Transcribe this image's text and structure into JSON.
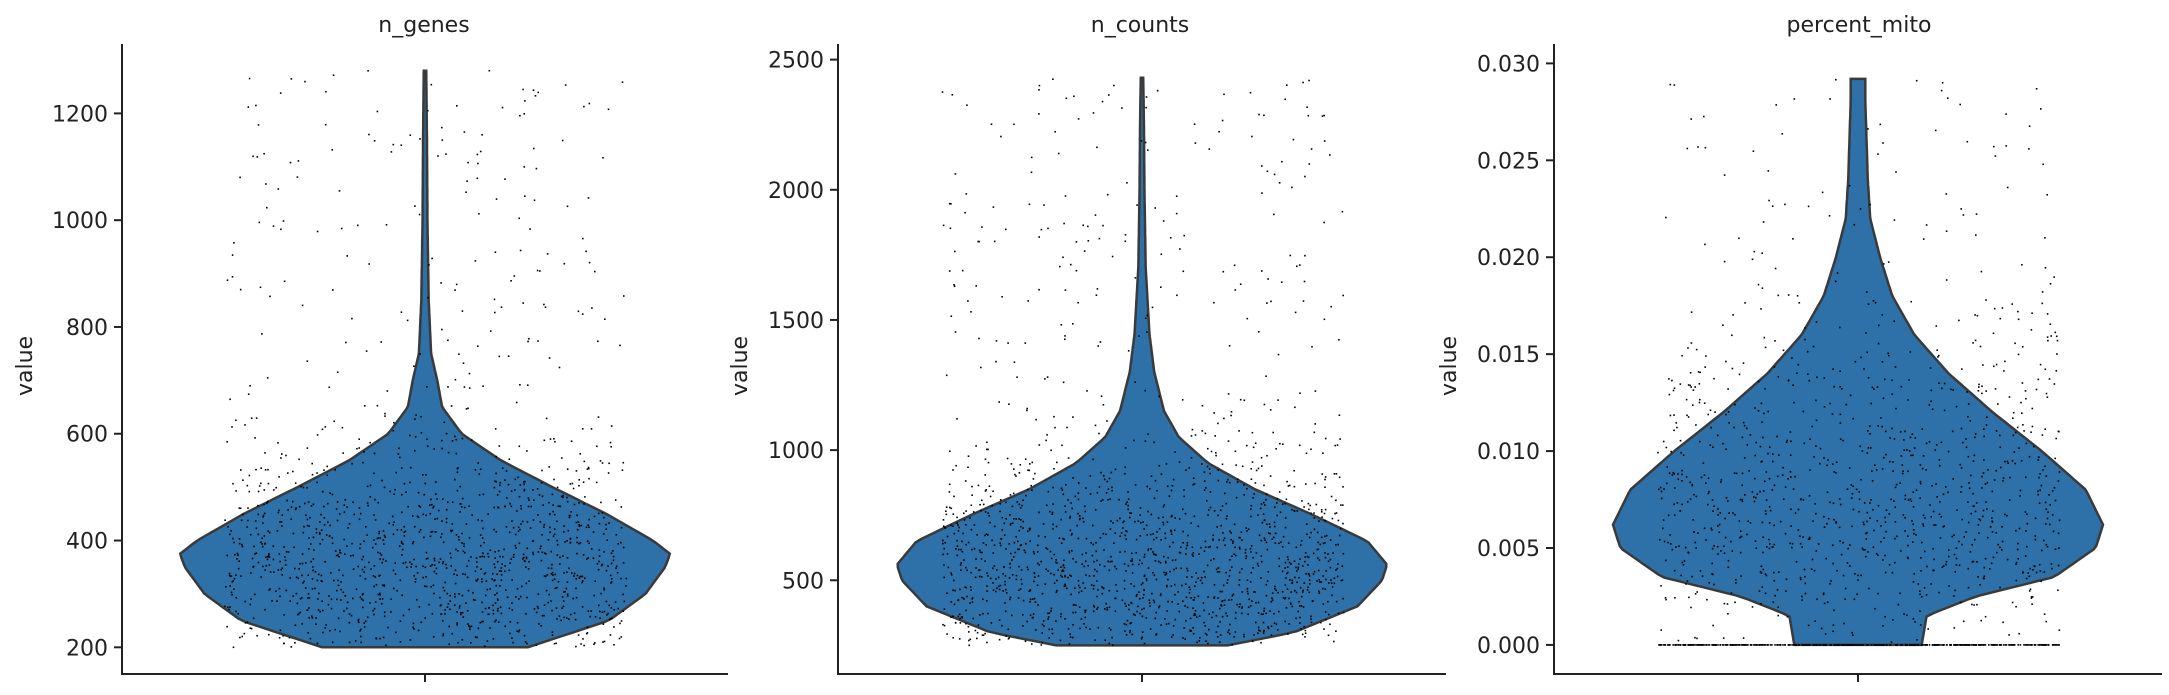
{
  "chart_data": [
    {
      "type": "violin",
      "title": "n_genes",
      "ylabel": "value",
      "ylim": [
        150,
        1330
      ],
      "yticks": [
        200,
        400,
        600,
        800,
        1000,
        1200
      ],
      "ytick_labels": [
        "200",
        "400",
        "600",
        "800",
        "1000",
        "1200"
      ],
      "violin_color": "#2e70a8",
      "n_points": 1400,
      "density": [
        {
          "y": 200,
          "width": 0.42
        },
        {
          "y": 250,
          "width": 0.75
        },
        {
          "y": 300,
          "width": 0.9
        },
        {
          "y": 350,
          "width": 0.98
        },
        {
          "y": 375,
          "width": 1.0
        },
        {
          "y": 400,
          "width": 0.93
        },
        {
          "y": 450,
          "width": 0.74
        },
        {
          "y": 500,
          "width": 0.52
        },
        {
          "y": 550,
          "width": 0.31
        },
        {
          "y": 600,
          "width": 0.15
        },
        {
          "y": 650,
          "width": 0.07
        },
        {
          "y": 700,
          "width": 0.05
        },
        {
          "y": 750,
          "width": 0.025
        },
        {
          "y": 850,
          "width": 0.015
        },
        {
          "y": 1000,
          "width": 0.01
        },
        {
          "y": 1150,
          "width": 0.008
        },
        {
          "y": 1280,
          "width": 0.005
        }
      ],
      "points_min": 200,
      "points_mode": 375,
      "points_max": 1280
    },
    {
      "type": "violin",
      "title": "n_counts",
      "ylabel": "value",
      "ylim": [
        140,
        2560
      ],
      "yticks": [
        500,
        1000,
        1500,
        2000,
        2500
      ],
      "ytick_labels": [
        "500",
        "1000",
        "1500",
        "2000",
        "2500"
      ],
      "violin_color": "#2e70a8",
      "n_points": 1600,
      "density": [
        {
          "y": 250,
          "width": 0.35
        },
        {
          "y": 300,
          "width": 0.62
        },
        {
          "y": 400,
          "width": 0.88
        },
        {
          "y": 500,
          "width": 0.98
        },
        {
          "y": 560,
          "width": 1.0
        },
        {
          "y": 650,
          "width": 0.92
        },
        {
          "y": 750,
          "width": 0.7
        },
        {
          "y": 850,
          "width": 0.46
        },
        {
          "y": 950,
          "width": 0.27
        },
        {
          "y": 1050,
          "width": 0.15
        },
        {
          "y": 1150,
          "width": 0.09
        },
        {
          "y": 1300,
          "width": 0.05
        },
        {
          "y": 1450,
          "width": 0.03
        },
        {
          "y": 1700,
          "width": 0.015
        },
        {
          "y": 2000,
          "width": 0.01
        },
        {
          "y": 2250,
          "width": 0.008
        },
        {
          "y": 2430,
          "width": 0.005
        }
      ],
      "points_min": 250,
      "points_mode": 560,
      "points_max": 2430
    },
    {
      "type": "violin",
      "title": "percent_mito",
      "ylabel": "value",
      "ylim": [
        -0.0015,
        0.031
      ],
      "yticks": [
        0.0,
        0.005,
        0.01,
        0.015,
        0.02,
        0.025,
        0.03
      ],
      "ytick_labels": [
        "0.000",
        "0.005",
        "0.010",
        "0.015",
        "0.020",
        "0.025",
        "0.030"
      ],
      "violin_color": "#2e70a8",
      "n_points": 1500,
      "density": [
        {
          "y": 0.0,
          "width": 0.26
        },
        {
          "y": 0.0015,
          "width": 0.28
        },
        {
          "y": 0.0025,
          "width": 0.48
        },
        {
          "y": 0.0035,
          "width": 0.8
        },
        {
          "y": 0.005,
          "width": 0.97
        },
        {
          "y": 0.0062,
          "width": 1.0
        },
        {
          "y": 0.008,
          "width": 0.93
        },
        {
          "y": 0.01,
          "width": 0.75
        },
        {
          "y": 0.012,
          "width": 0.55
        },
        {
          "y": 0.014,
          "width": 0.37
        },
        {
          "y": 0.016,
          "width": 0.23
        },
        {
          "y": 0.018,
          "width": 0.14
        },
        {
          "y": 0.02,
          "width": 0.09
        },
        {
          "y": 0.022,
          "width": 0.05
        },
        {
          "y": 0.024,
          "width": 0.04
        },
        {
          "y": 0.026,
          "width": 0.035
        },
        {
          "y": 0.028,
          "width": 0.03
        },
        {
          "y": 0.0292,
          "width": 0.03
        }
      ],
      "points_min": 0.0,
      "points_mode": 0.0062,
      "points_max": 0.0292,
      "zero_cluster_fraction": 0.12
    }
  ]
}
